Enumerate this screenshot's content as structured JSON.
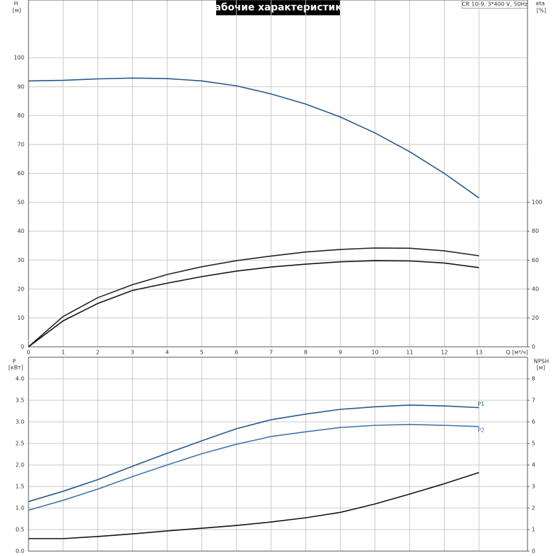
{
  "title": "Рабочие характеристики",
  "model": "CR 10-9, 3*400 V, 50Hz",
  "chart_data": [
    {
      "type": "line",
      "y_label": "H",
      "y_unit": "[м]",
      "y2_label": "eta",
      "y2_unit": "[%]",
      "x_label": "Q [м³/ч]",
      "x": [
        0,
        1,
        2,
        3,
        4,
        5,
        6,
        7,
        8,
        9,
        10,
        11,
        12,
        13
      ],
      "xlim": [
        0,
        14.4
      ],
      "xticks": [
        0,
        1,
        2,
        3,
        4,
        5,
        6,
        7,
        8,
        9,
        10,
        11,
        12,
        13
      ],
      "ylim": [
        0,
        120
      ],
      "yticks": [
        0,
        10,
        20,
        30,
        40,
        50,
        60,
        70,
        80,
        90,
        100
      ],
      "y2lim": [
        0,
        240
      ],
      "y2ticks": [
        0,
        20,
        40,
        60,
        80,
        100
      ],
      "grid": true,
      "series": [
        {
          "color": "#24588a",
          "values": [
            92,
            92.2,
            92.7,
            93,
            92.8,
            92,
            90.3,
            87.5,
            84,
            79.5,
            74,
            67.5,
            60,
            51.5
          ]
        },
        {
          "color": "#222222",
          "axis": "y2",
          "values": [
            0,
            21,
            34,
            43,
            50,
            55.4,
            59.6,
            62.8,
            65.6,
            67.4,
            68.4,
            68.2,
            66.4,
            63
          ]
        },
        {
          "color": "#111111",
          "axis": "y2",
          "values": [
            0,
            18,
            30,
            39,
            44,
            48.6,
            52.4,
            55.2,
            57.2,
            58.8,
            59.6,
            59.4,
            58,
            54.8
          ]
        }
      ]
    },
    {
      "type": "line",
      "y_label": "P",
      "y_unit": "[кВт]",
      "y2_label": "NPSH",
      "y2_unit": "[м]",
      "x": [
        0,
        1,
        2,
        3,
        4,
        5,
        6,
        7,
        8,
        9,
        10,
        11,
        12,
        13
      ],
      "xlim": [
        0,
        14.4
      ],
      "ylim": [
        0,
        4.5
      ],
      "yticks": [
        {
          "value": 0,
          "label": "0.0"
        },
        0.5,
        {
          "value": 1,
          "label": "1.0"
        },
        1.5,
        {
          "value": 2,
          "label": "2.0"
        },
        2.5,
        {
          "value": 3,
          "label": "3.0"
        },
        3.5,
        {
          "value": 4,
          "label": "4.0"
        }
      ],
      "y2lim": [
        0,
        9
      ],
      "y2ticks": [
        0,
        1,
        2,
        3,
        4,
        5,
        6,
        7,
        8
      ],
      "grid": true,
      "series": [
        {
          "name": "P1",
          "color": "#24588a",
          "values": [
            1.15,
            1.39,
            1.66,
            1.97,
            2.27,
            2.56,
            2.84,
            3.05,
            3.18,
            3.29,
            3.35,
            3.39,
            3.37,
            3.33
          ]
        },
        {
          "name": "P2",
          "color": "#3f74ad",
          "values": [
            0.95,
            1.18,
            1.44,
            1.73,
            2.0,
            2.26,
            2.48,
            2.66,
            2.77,
            2.87,
            2.92,
            2.94,
            2.92,
            2.89
          ]
        },
        {
          "color": "#111111",
          "axis": "y2",
          "values": [
            0.58,
            0.58,
            0.68,
            0.8,
            0.94,
            1.06,
            1.19,
            1.35,
            1.55,
            1.8,
            2.19,
            2.65,
            3.13,
            3.65
          ]
        }
      ]
    }
  ]
}
